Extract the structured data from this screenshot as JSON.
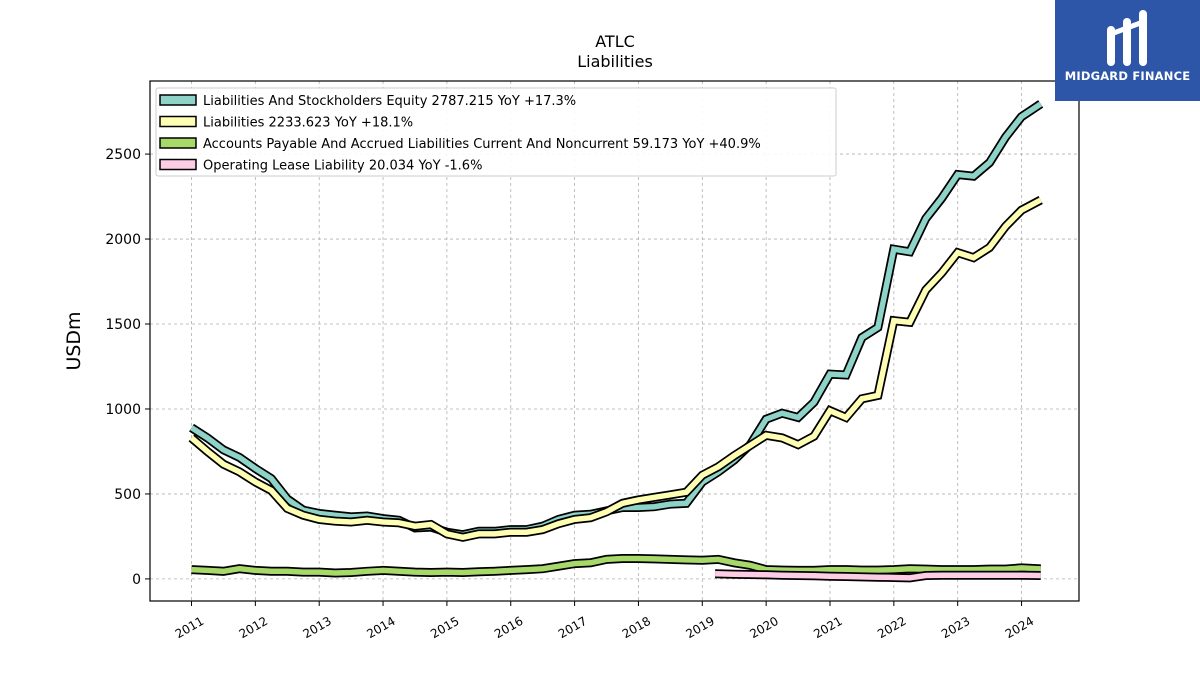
{
  "brand": {
    "name": "MIDGARD FINANCE",
    "color": "#2d56a8"
  },
  "chart_data": {
    "type": "line",
    "title": "ATLC",
    "subtitle": "Liabilities",
    "ylabel": "USDm",
    "xlabel": "",
    "ylim": [
      -130,
      2930
    ],
    "xlim": [
      2010.35,
      2024.9
    ],
    "y_ticks": [
      0,
      500,
      1000,
      1500,
      2000,
      2500
    ],
    "x_ticks": [
      2011,
      2012,
      2013,
      2014,
      2015,
      2016,
      2017,
      2018,
      2019,
      2020,
      2021,
      2022,
      2023,
      2024
    ],
    "grid": true,
    "legend_position": "top-left",
    "series": [
      {
        "name": "Liabilities And Stockholders Equity",
        "legend_label": "Liabilities And Stockholders Equity  2787.215 YoY +17.3%",
        "color": "#8dd3c7",
        "x": [
          2011.0,
          2011.25,
          2011.5,
          2011.75,
          2012.0,
          2012.25,
          2012.5,
          2012.75,
          2013.0,
          2013.25,
          2013.5,
          2013.75,
          2014.0,
          2014.25,
          2014.5,
          2014.75,
          2015.0,
          2015.25,
          2015.5,
          2015.75,
          2016.0,
          2016.25,
          2016.5,
          2016.75,
          2017.0,
          2017.25,
          2017.5,
          2017.75,
          2018.0,
          2018.25,
          2018.5,
          2018.75,
          2019.0,
          2019.25,
          2019.5,
          2019.75,
          2020.0,
          2020.25,
          2020.5,
          2020.75,
          2021.0,
          2021.25,
          2021.5,
          2021.75,
          2022.0,
          2022.25,
          2022.5,
          2022.75,
          2023.0,
          2023.25,
          2023.5,
          2023.75,
          2024.0,
          2024.3
        ],
        "y": [
          890,
          830,
          760,
          715,
          650,
          590,
          470,
          405,
          385,
          375,
          365,
          370,
          355,
          345,
          300,
          305,
          275,
          260,
          280,
          280,
          290,
          290,
          310,
          350,
          375,
          380,
          400,
          420,
          420,
          425,
          440,
          445,
          570,
          630,
          700,
          790,
          940,
          975,
          950,
          1040,
          1205,
          1200,
          1420,
          1480,
          1940,
          1925,
          2120,
          2240,
          2380,
          2370,
          2450,
          2600,
          2720,
          2795
        ]
      },
      {
        "name": "Liabilities",
        "legend_label": "Liabilities  2233.623 YoY +18.1%",
        "color": "#ffffb3",
        "x": [
          2011.0,
          2011.25,
          2011.5,
          2011.75,
          2012.0,
          2012.25,
          2012.5,
          2012.75,
          2013.0,
          2013.25,
          2013.5,
          2013.75,
          2014.0,
          2014.25,
          2014.5,
          2014.75,
          2015.0,
          2015.25,
          2015.5,
          2015.75,
          2016.0,
          2016.25,
          2016.5,
          2016.75,
          2017.0,
          2017.25,
          2017.5,
          2017.75,
          2018.0,
          2018.25,
          2018.5,
          2018.75,
          2019.0,
          2019.25,
          2019.5,
          2019.75,
          2020.0,
          2020.25,
          2020.5,
          2020.75,
          2021.0,
          2021.25,
          2021.5,
          2021.75,
          2022.0,
          2022.25,
          2022.5,
          2022.75,
          2023.0,
          2023.25,
          2023.5,
          2023.75,
          2024.0,
          2024.3
        ],
        "y": [
          830,
          750,
          675,
          630,
          570,
          520,
          415,
          375,
          350,
          340,
          335,
          345,
          335,
          330,
          310,
          320,
          265,
          245,
          265,
          265,
          275,
          275,
          290,
          325,
          350,
          360,
          395,
          445,
          465,
          480,
          495,
          510,
          610,
          660,
          725,
          785,
          845,
          830,
          790,
          840,
          990,
          950,
          1060,
          1080,
          1520,
          1510,
          1700,
          1800,
          1920,
          1890,
          1950,
          2075,
          2170,
          2230
        ]
      },
      {
        "name": "Accounts Payable And Accrued Liabilities Current And Noncurrent",
        "legend_label": "Accounts Payable And Accrued Liabilities Current And Noncurrent  59.173 YoY +40.9%",
        "color": "#a6d96a",
        "x": [
          2011.0,
          2011.25,
          2011.5,
          2011.75,
          2012.0,
          2012.25,
          2012.5,
          2012.75,
          2013.0,
          2013.25,
          2013.5,
          2013.75,
          2014.0,
          2014.25,
          2014.5,
          2014.75,
          2015.0,
          2015.25,
          2015.5,
          2015.75,
          2016.0,
          2016.25,
          2016.5,
          2016.75,
          2017.0,
          2017.25,
          2017.5,
          2017.75,
          2018.0,
          2018.25,
          2018.5,
          2018.75,
          2019.0,
          2019.25,
          2019.5,
          2019.75,
          2020.0,
          2020.25,
          2020.5,
          2020.75,
          2021.0,
          2021.25,
          2021.5,
          2021.75,
          2022.0,
          2022.25,
          2022.5,
          2022.75,
          2023.0,
          2023.25,
          2023.5,
          2023.75,
          2024.0,
          2024.3
        ],
        "y": [
          55,
          50,
          45,
          60,
          50,
          45,
          45,
          40,
          40,
          35,
          38,
          45,
          50,
          45,
          40,
          38,
          40,
          38,
          42,
          45,
          50,
          55,
          60,
          75,
          90,
          95,
          115,
          120,
          120,
          118,
          115,
          112,
          110,
          115,
          95,
          80,
          55,
          52,
          50,
          50,
          55,
          55,
          52,
          52,
          55,
          60,
          58,
          55,
          55,
          55,
          58,
          58,
          65,
          59
        ]
      },
      {
        "name": "Operating Lease Liability",
        "legend_label": "Operating Lease Liability  20.034 YoY -1.6%",
        "color": "#fccde5",
        "x": [
          2019.2,
          2019.5,
          2019.75,
          2020.0,
          2020.25,
          2020.5,
          2020.75,
          2021.0,
          2021.25,
          2021.5,
          2021.75,
          2022.0,
          2022.25,
          2022.5,
          2022.75,
          2023.0,
          2023.25,
          2023.5,
          2023.75,
          2024.0,
          2024.3
        ],
        "y": [
          30,
          28,
          26,
          24,
          22,
          20,
          18,
          16,
          14,
          12,
          10,
          8,
          6,
          20,
          21,
          21,
          21,
          21,
          21,
          21,
          20
        ]
      }
    ]
  }
}
